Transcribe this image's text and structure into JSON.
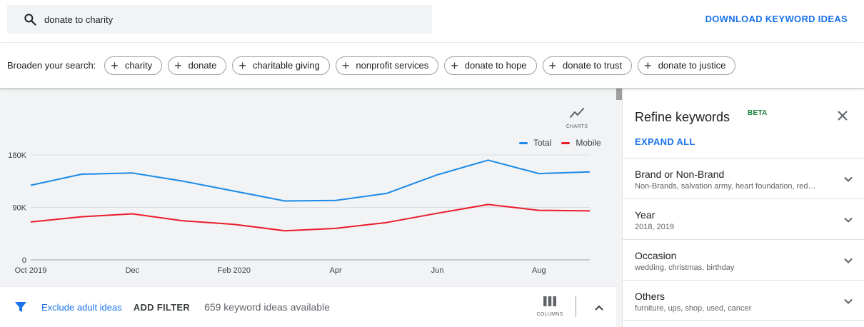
{
  "search": {
    "value": "donate to charity"
  },
  "header": {
    "download_label": "DOWNLOAD KEYWORD IDEAS"
  },
  "broaden": {
    "label": "Broaden your search:",
    "chips": [
      "charity",
      "donate",
      "charitable giving",
      "nonprofit services",
      "donate to hope",
      "donate to trust",
      "donate to justice"
    ]
  },
  "chart_controls": {
    "charts_label": "CHARTS"
  },
  "chart_data": {
    "type": "line",
    "title": "",
    "xlabel": "",
    "ylabel": "",
    "x": [
      "Oct 2019",
      "Nov 2019",
      "Dec 2019",
      "Jan 2020",
      "Feb 2020",
      "Mar 2020",
      "Apr 2020",
      "May 2020",
      "Jun 2020",
      "Jul 2020",
      "Aug 2020",
      "Sep 2020"
    ],
    "x_tick_labels": [
      "Oct 2019",
      "Dec",
      "Feb 2020",
      "Apr",
      "Jun",
      "Aug"
    ],
    "x_tick_indices": [
      0,
      2,
      4,
      6,
      8,
      10
    ],
    "ylim": [
      0,
      180000
    ],
    "y_ticks": [
      0,
      90000,
      180000
    ],
    "y_tick_labels": [
      "0",
      "90K",
      "180K"
    ],
    "grid": true,
    "legend_position": "top-right",
    "series": [
      {
        "name": "Total",
        "color": "#1a8ae8",
        "values": [
          128000,
          147000,
          149000,
          135000,
          118000,
          101000,
          102000,
          114000,
          146000,
          171000,
          148000,
          151000
        ]
      },
      {
        "name": "Mobile",
        "color": "#ea1d2c",
        "values": [
          65000,
          74000,
          79000,
          67000,
          61000,
          50000,
          54000,
          64000,
          80000,
          95000,
          85000,
          84000
        ]
      }
    ]
  },
  "bottom": {
    "exclude_label": "Exclude adult ideas",
    "add_filter_label": "ADD FILTER",
    "count_text": "659 keyword ideas available",
    "columns_label": "COLUMNS"
  },
  "refine": {
    "title": "Refine keywords",
    "beta": "BETA",
    "expand_all": "EXPAND ALL",
    "sections": [
      {
        "title": "Brand or Non-Brand",
        "subtitle": "Non-Brands, salvation army, heart foundation, red cross"
      },
      {
        "title": "Year",
        "subtitle": "2018, 2019"
      },
      {
        "title": "Occasion",
        "subtitle": "wedding, christmas, birthday"
      },
      {
        "title": "Others",
        "subtitle": "furniture, ups, shop, used, cancer"
      }
    ]
  }
}
